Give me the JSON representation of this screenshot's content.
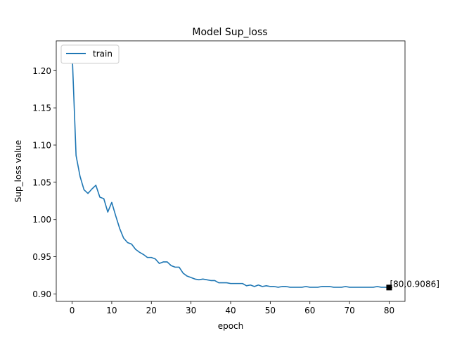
{
  "chart_data": {
    "type": "line",
    "title": "Model Sup_loss",
    "xlabel": "epoch",
    "ylabel": "Sup_loss value",
    "xlim": [
      -4,
      84
    ],
    "ylim": [
      0.89,
      1.24
    ],
    "xticks": [
      0,
      10,
      20,
      30,
      40,
      50,
      60,
      70,
      80
    ],
    "yticks": [
      0.9,
      0.95,
      1.0,
      1.05,
      1.1,
      1.15,
      1.2
    ],
    "grid": false,
    "legend": {
      "placement": "upper-left",
      "entries": [
        "train"
      ]
    },
    "series": [
      {
        "name": "train",
        "color": "#1f77b4",
        "x": [
          0,
          1,
          2,
          3,
          4,
          5,
          6,
          7,
          8,
          9,
          10,
          11,
          12,
          13,
          14,
          15,
          16,
          17,
          18,
          19,
          20,
          21,
          22,
          23,
          24,
          25,
          26,
          27,
          28,
          29,
          30,
          31,
          32,
          33,
          34,
          35,
          36,
          37,
          38,
          39,
          40,
          41,
          42,
          43,
          44,
          45,
          46,
          47,
          48,
          49,
          50,
          51,
          52,
          53,
          54,
          55,
          56,
          57,
          58,
          59,
          60,
          61,
          62,
          63,
          64,
          65,
          66,
          67,
          68,
          69,
          70,
          71,
          72,
          73,
          74,
          75,
          76,
          77,
          78,
          79,
          80
        ],
        "y": [
          1.225,
          1.086,
          1.058,
          1.04,
          1.035,
          1.041,
          1.046,
          1.03,
          1.028,
          1.01,
          1.023,
          1.005,
          0.988,
          0.975,
          0.969,
          0.967,
          0.96,
          0.956,
          0.953,
          0.949,
          0.949,
          0.947,
          0.941,
          0.943,
          0.943,
          0.938,
          0.936,
          0.936,
          0.928,
          0.924,
          0.922,
          0.92,
          0.919,
          0.92,
          0.919,
          0.918,
          0.918,
          0.915,
          0.915,
          0.915,
          0.914,
          0.914,
          0.914,
          0.914,
          0.911,
          0.912,
          0.91,
          0.912,
          0.91,
          0.911,
          0.91,
          0.91,
          0.909,
          0.91,
          0.91,
          0.909,
          0.909,
          0.909,
          0.909,
          0.91,
          0.909,
          0.909,
          0.909,
          0.91,
          0.91,
          0.91,
          0.909,
          0.909,
          0.909,
          0.91,
          0.909,
          0.909,
          0.909,
          0.909,
          0.909,
          0.909,
          0.909,
          0.91,
          0.909,
          0.909,
          0.9086
        ]
      }
    ],
    "annotation": {
      "x": 80,
      "y": 0.9086,
      "label": "[80,0.9086]",
      "marker_color": "#000000"
    }
  }
}
